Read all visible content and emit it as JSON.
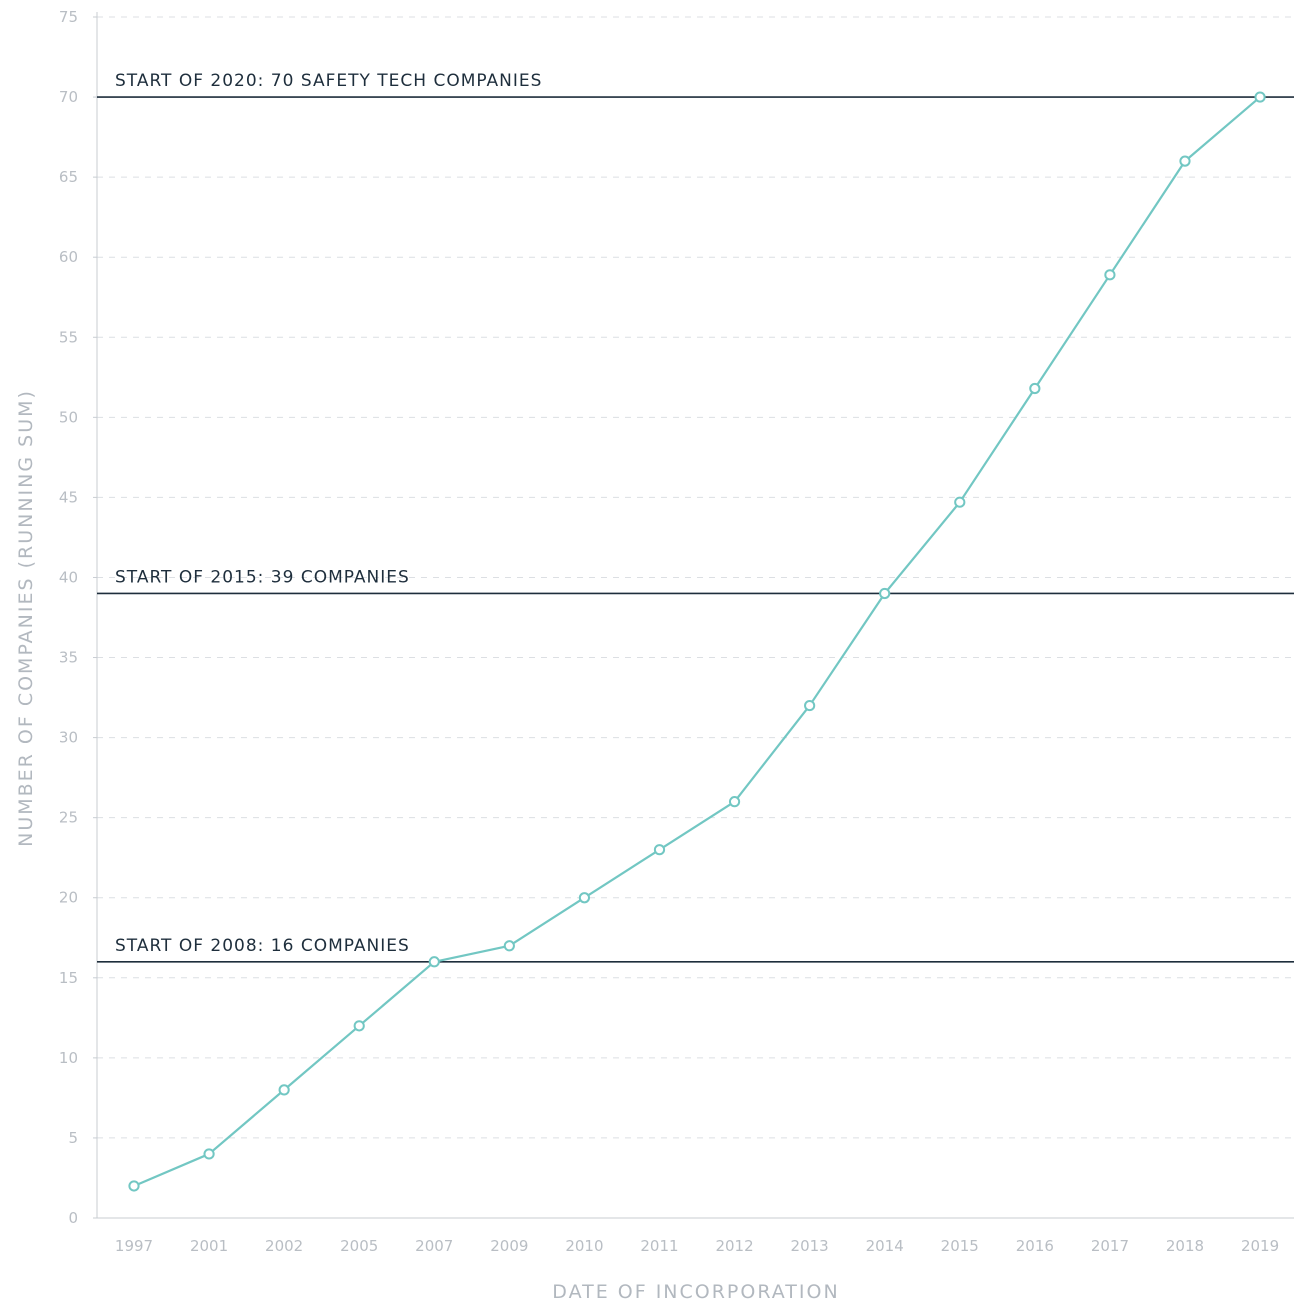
{
  "chart_data": {
    "type": "line",
    "title": "",
    "xlabel": "DATE OF INCORPORATION",
    "ylabel": "NUMBER OF COMPANIES (RUNNING SUM)",
    "categories": [
      "1997",
      "2001",
      "2002",
      "2005",
      "2007",
      "2009",
      "2010",
      "2011",
      "2012",
      "2013",
      "2014",
      "2015",
      "2016",
      "2017",
      "2018",
      "2019"
    ],
    "series": [
      {
        "values": [
          2,
          4,
          8,
          12,
          16,
          17,
          20,
          23,
          26,
          32,
          39,
          44.7,
          51.8,
          58.9,
          66,
          70
        ]
      }
    ],
    "ylim": [
      0,
      75
    ],
    "yticks": [
      0,
      5,
      10,
      15,
      20,
      25,
      30,
      35,
      40,
      45,
      50,
      55,
      60,
      65,
      70,
      75
    ],
    "grid": true,
    "reference_lines": [
      {
        "value": 70,
        "label": "START OF 2020: 70 SAFETY TECH COMPANIES"
      },
      {
        "value": 39,
        "label": "START OF 2015: 39 COMPANIES"
      },
      {
        "value": 16,
        "label": "START OF 2008: 16 COMPANIES"
      }
    ],
    "colors": {
      "line": "#72c7c3",
      "reference": "#1e2e3c",
      "tick": "#b9bec4",
      "grid": "#dcdfe3"
    }
  }
}
